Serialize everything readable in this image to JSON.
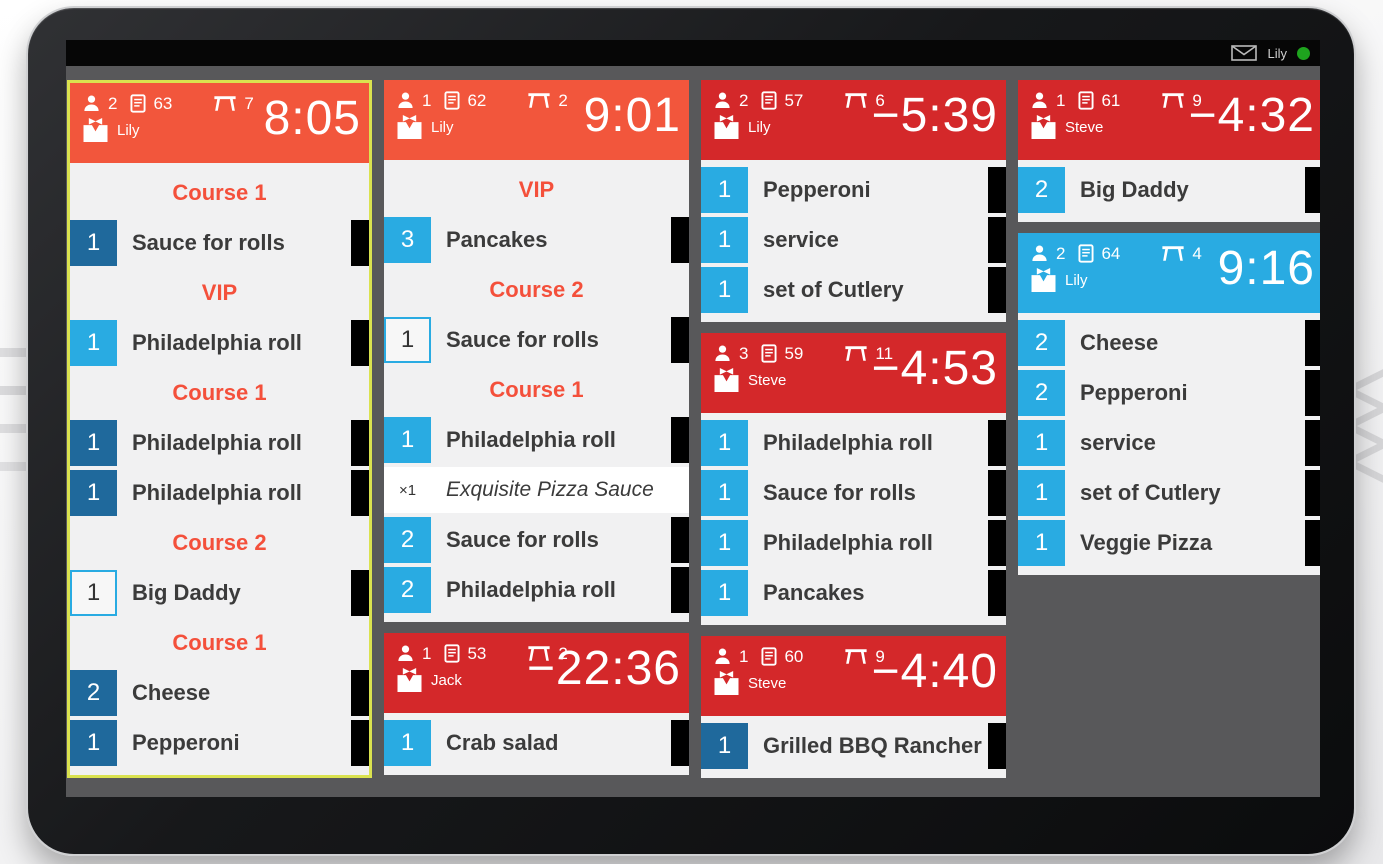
{
  "status_bar": {
    "user": "Lily",
    "message_icon": "envelope-icon",
    "online_indicator": "green-dot"
  },
  "colors": {
    "header_orange": "#F2563C",
    "header_red": "#D4282A",
    "header_blue": "#29ABE2",
    "badge_dark": "#1F699C",
    "badge_light": "#29ABE2",
    "badge_outline_border": "#29ABE2",
    "course_text": "#F4503B",
    "selected_border": "#DAE24F",
    "online_dot": "#1EA41E",
    "screen_background": "#58585A",
    "ticket_background": "#F1F1F2"
  },
  "tickets": [
    {
      "column": 0,
      "selected": true,
      "variant": "orange",
      "guests": "2",
      "order": "63",
      "table": "7",
      "waiter": "Lily",
      "timer": "8:05",
      "rows": [
        {
          "type": "course",
          "label": "Course 1"
        },
        {
          "type": "item",
          "qty": "1",
          "name": "Sauce for rolls",
          "badge": "dark"
        },
        {
          "type": "course",
          "label": "VIP"
        },
        {
          "type": "item",
          "qty": "1",
          "name": "Philadelphia roll",
          "badge": "light"
        },
        {
          "type": "course",
          "label": "Course 1"
        },
        {
          "type": "item",
          "qty": "1",
          "name": "Philadelphia roll",
          "badge": "dark"
        },
        {
          "type": "item",
          "qty": "1",
          "name": "Philadelphia roll",
          "badge": "dark"
        },
        {
          "type": "course",
          "label": "Course 2"
        },
        {
          "type": "item",
          "qty": "1",
          "name": "Big Daddy",
          "badge": "outline"
        },
        {
          "type": "course",
          "label": "Course 1"
        },
        {
          "type": "item",
          "qty": "2",
          "name": "Cheese",
          "badge": "dark"
        },
        {
          "type": "item",
          "qty": "1",
          "name": "Pepperoni",
          "badge": "dark"
        }
      ]
    },
    {
      "column": 1,
      "selected": false,
      "variant": "orange",
      "guests": "1",
      "order": "62",
      "table": "2",
      "waiter": "Lily",
      "timer": "9:01",
      "rows": [
        {
          "type": "course",
          "label": "VIP"
        },
        {
          "type": "item",
          "qty": "3",
          "name": "Pancakes",
          "badge": "light"
        },
        {
          "type": "course",
          "label": "Course 2"
        },
        {
          "type": "item",
          "qty": "1",
          "name": "Sauce for rolls",
          "badge": "outline"
        },
        {
          "type": "course",
          "label": "Course 1"
        },
        {
          "type": "item",
          "qty": "1",
          "name": "Philadelphia roll",
          "badge": "light"
        },
        {
          "type": "modifier",
          "qty": "×1",
          "name": "Exquisite Pizza Sauce"
        },
        {
          "type": "item",
          "qty": "2",
          "name": "Sauce for rolls",
          "badge": "light"
        },
        {
          "type": "item",
          "qty": "2",
          "name": "Philadelphia roll",
          "badge": "light"
        }
      ]
    },
    {
      "column": 1,
      "selected": false,
      "variant": "red",
      "guests": "1",
      "order": "53",
      "table": "2",
      "waiter": "Jack",
      "timer": "−22:36",
      "rows": [
        {
          "type": "item",
          "qty": "1",
          "name": "Crab salad",
          "badge": "light"
        }
      ]
    },
    {
      "column": 2,
      "selected": false,
      "variant": "red",
      "guests": "2",
      "order": "57",
      "table": "6",
      "waiter": "Lily",
      "timer": "−5:39",
      "rows": [
        {
          "type": "item",
          "qty": "1",
          "name": "Pepperoni",
          "badge": "light"
        },
        {
          "type": "item",
          "qty": "1",
          "name": "service",
          "badge": "light"
        },
        {
          "type": "item",
          "qty": "1",
          "name": "set of Cutlery",
          "badge": "light"
        }
      ]
    },
    {
      "column": 2,
      "selected": false,
      "variant": "red",
      "guests": "3",
      "order": "59",
      "table": "11",
      "waiter": "Steve",
      "timer": "−4:53",
      "rows": [
        {
          "type": "item",
          "qty": "1",
          "name": "Philadelphia roll",
          "badge": "light"
        },
        {
          "type": "item",
          "qty": "1",
          "name": "Sauce for rolls",
          "badge": "light"
        },
        {
          "type": "item",
          "qty": "1",
          "name": "Philadelphia roll",
          "badge": "light"
        },
        {
          "type": "item",
          "qty": "1",
          "name": "Pancakes",
          "badge": "light"
        }
      ]
    },
    {
      "column": 2,
      "selected": false,
      "variant": "red",
      "guests": "1",
      "order": "60",
      "table": "9",
      "waiter": "Steve",
      "timer": "−4:40",
      "rows": [
        {
          "type": "item",
          "qty": "1",
          "name": "Grilled BBQ Rancher",
          "badge": "dark"
        }
      ]
    },
    {
      "column": 3,
      "selected": false,
      "variant": "red",
      "guests": "1",
      "order": "61",
      "table": "9",
      "waiter": "Steve",
      "timer": "−4:32",
      "rows": [
        {
          "type": "item",
          "qty": "2",
          "name": "Big Daddy",
          "badge": "light"
        }
      ]
    },
    {
      "column": 3,
      "selected": false,
      "variant": "blue",
      "guests": "2",
      "order": "64",
      "table": "4",
      "waiter": "Lily",
      "timer": "9:16",
      "rows": [
        {
          "type": "item",
          "qty": "2",
          "name": "Cheese",
          "badge": "light"
        },
        {
          "type": "item",
          "qty": "2",
          "name": "Pepperoni",
          "badge": "light"
        },
        {
          "type": "item",
          "qty": "1",
          "name": "service",
          "badge": "light"
        },
        {
          "type": "item",
          "qty": "1",
          "name": "set of Cutlery",
          "badge": "light"
        },
        {
          "type": "item",
          "qty": "1",
          "name": "Veggie Pizza",
          "badge": "light"
        }
      ]
    }
  ]
}
